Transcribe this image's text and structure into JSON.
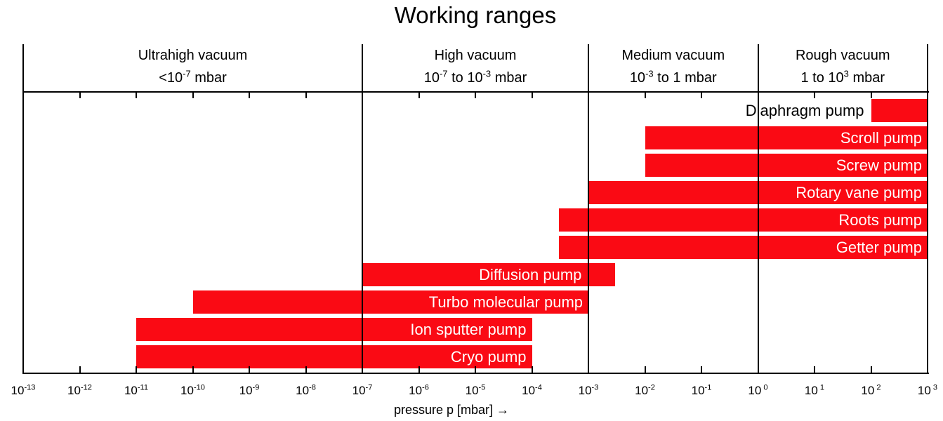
{
  "chart_data": {
    "type": "bar",
    "orientation": "horizontal-range",
    "title": "Working ranges",
    "xlabel": "pressure p [mbar] →",
    "x_scale": "log10",
    "x_min_exp": -13,
    "x_max_exp": 3,
    "x_ticks_exponents": [
      -13,
      -12,
      -11,
      -10,
      -9,
      -8,
      -7,
      -6,
      -5,
      -4,
      -3,
      -2,
      -1,
      0,
      1,
      2,
      3
    ],
    "grid": "region-boundaries-only",
    "legend": "none",
    "regions": [
      {
        "name": "Ultrahigh vacuum",
        "range_text": "<10^-7 mbar",
        "range_segments": [
          {
            "t": "<10"
          },
          {
            "sup": "-7"
          },
          {
            "t": " mbar"
          }
        ],
        "from_exp": -13,
        "to_exp": -7
      },
      {
        "name": "High vacuum",
        "range_text": "10^-7 to 10^-3 mbar",
        "range_segments": [
          {
            "t": "10"
          },
          {
            "sup": "-7"
          },
          {
            "t": " to 10"
          },
          {
            "sup": "-3"
          },
          {
            "t": " mbar"
          }
        ],
        "from_exp": -7,
        "to_exp": -3
      },
      {
        "name": "Medium vacuum",
        "range_text": "10^-3 to 1 mbar",
        "range_segments": [
          {
            "t": "10"
          },
          {
            "sup": "-3"
          },
          {
            "t": " to 1 mbar"
          }
        ],
        "from_exp": -3,
        "to_exp": 0
      },
      {
        "name": "Rough vacuum",
        "range_text": "1 to 10^3 mbar",
        "range_segments": [
          {
            "t": "1 to 10"
          },
          {
            "sup": "3"
          },
          {
            "t": " mbar"
          }
        ],
        "from_exp": 0,
        "to_exp": 3
      }
    ],
    "series": [
      {
        "name": "Diaphragm pump",
        "from_mbar": 100.0,
        "to_mbar": 1000.0,
        "label_style": "outside-left"
      },
      {
        "name": "Scroll pump",
        "from_mbar": 0.01,
        "to_mbar": 1000.0,
        "label_style": "inside-right"
      },
      {
        "name": "Screw pump",
        "from_mbar": 0.01,
        "to_mbar": 1000.0,
        "label_style": "inside-right"
      },
      {
        "name": "Rotary vane pump",
        "from_mbar": 0.001,
        "to_mbar": 1000.0,
        "label_style": "inside-right"
      },
      {
        "name": "Roots pump",
        "from_mbar": 0.0003,
        "to_mbar": 1000.0,
        "label_style": "inside-right"
      },
      {
        "name": "Getter pump",
        "from_mbar": 0.0003,
        "to_mbar": 1000.0,
        "label_style": "inside-right"
      },
      {
        "name": "Diffusion pump",
        "from_mbar": 1e-07,
        "to_mbar": 0.003,
        "label_style": "inside-right",
        "label_pad": 48
      },
      {
        "name": "Turbo molecular pump",
        "from_mbar": 1e-10,
        "to_mbar": 0.001,
        "label_style": "inside-right"
      },
      {
        "name": "Ion sputter pump",
        "from_mbar": 1e-11,
        "to_mbar": 0.0001,
        "label_style": "inside-right"
      },
      {
        "name": "Cryo pump",
        "from_mbar": 1e-11,
        "to_mbar": 0.0001,
        "label_style": "inside-right"
      }
    ],
    "colors": {
      "bar": "#fa0a14",
      "bar_label_inside": "#ffffff",
      "bar_label_outside": "#000000",
      "axis_lines": "#000000",
      "background": "#ffffff"
    }
  }
}
